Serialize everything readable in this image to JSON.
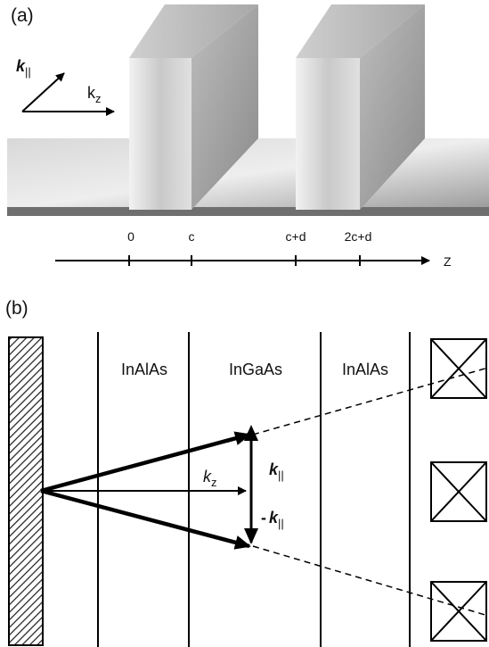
{
  "panel_a": {
    "label": "(a)",
    "vectors": [
      {
        "symbol": "k",
        "subscript": "||"
      },
      {
        "symbol": "k",
        "subscript": "z"
      }
    ],
    "axis": {
      "ticks": [
        "0",
        "c",
        "c+d",
        "2c+d"
      ],
      "label": "Z"
    }
  },
  "panel_b": {
    "label": "(b)",
    "layers": [
      "InAlAs",
      "InGaAs",
      "InAlAs"
    ],
    "vectors": {
      "kz": {
        "symbol": "k",
        "subscript": "z"
      },
      "kpar": {
        "symbol": "k",
        "subscript": "||"
      },
      "minus_kpar": {
        "sign": "-",
        "symbol": "k",
        "subscript": "||"
      }
    }
  }
}
